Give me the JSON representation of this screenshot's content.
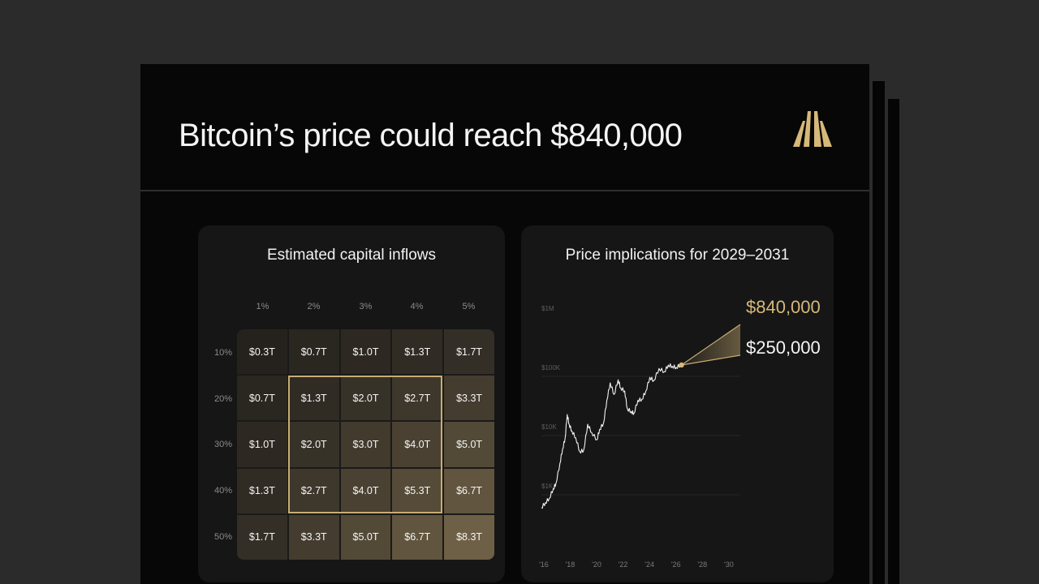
{
  "slide": {
    "title": "Bitcoin’s price could reach $840,000"
  },
  "colors": {
    "accent_gold": "#c9ad72",
    "background": "#070707",
    "card": "#161616"
  },
  "icons": {
    "logo": "bitwise-logo-icon"
  },
  "left_card": {
    "title": "Estimated capital inflows",
    "col_headers": [
      "1%",
      "2%",
      "3%",
      "4%",
      "5%"
    ],
    "row_headers": [
      "10%",
      "20%",
      "30%",
      "40%",
      "50%"
    ],
    "cells": [
      [
        "$0.3T",
        "$0.7T",
        "$1.0T",
        "$1.3T",
        "$1.7T"
      ],
      [
        "$0.7T",
        "$1.3T",
        "$2.0T",
        "$2.7T",
        "$3.3T"
      ],
      [
        "$1.0T",
        "$2.0T",
        "$3.0T",
        "$4.0T",
        "$5.0T"
      ],
      [
        "$1.3T",
        "$2.7T",
        "$4.0T",
        "$5.3T",
        "$6.7T"
      ],
      [
        "$1.7T",
        "$3.3T",
        "$5.0T",
        "$6.7T",
        "$8.3T"
      ]
    ],
    "cell_values_t": [
      [
        0.3,
        0.7,
        1.0,
        1.3,
        1.7
      ],
      [
        0.7,
        1.3,
        2.0,
        2.7,
        3.3
      ],
      [
        1.0,
        2.0,
        3.0,
        4.0,
        5.0
      ],
      [
        1.3,
        2.7,
        4.0,
        5.3,
        6.7
      ],
      [
        1.7,
        3.3,
        5.0,
        6.7,
        8.3
      ]
    ],
    "highlight_range": {
      "rows": [
        "20%",
        "40%"
      ],
      "cols": [
        "2%",
        "4%"
      ]
    }
  },
  "right_card": {
    "title": "Price implications for 2029–2031",
    "high_target": "$840,000",
    "low_target": "$250,000"
  },
  "chart_data": {
    "type": "line",
    "title": "Price implications for 2029–2031",
    "y_scale": "log",
    "y_ticks": [
      "$1M",
      "$100K",
      "$10K",
      "$1K"
    ],
    "x_ticks": [
      "'16",
      "'18",
      "'20",
      "'22",
      "'24",
      "'26",
      "'28",
      "'30"
    ],
    "xlim": [
      2016,
      2030
    ],
    "ylim": [
      100,
      1000000
    ],
    "series": [
      {
        "values": [
          [
            2016.0,
            430
          ],
          [
            2016.3,
            520
          ],
          [
            2016.6,
            620
          ],
          [
            2016.9,
            900
          ],
          [
            2017.1,
            1100
          ],
          [
            2017.4,
            2400
          ],
          [
            2017.6,
            4200
          ],
          [
            2017.8,
            6500
          ],
          [
            2017.95,
            16000
          ],
          [
            2018.1,
            11000
          ],
          [
            2018.3,
            8500
          ],
          [
            2018.6,
            6500
          ],
          [
            2018.9,
            3800
          ],
          [
            2019.2,
            4000
          ],
          [
            2019.5,
            11000
          ],
          [
            2019.8,
            8000
          ],
          [
            2020.2,
            6000
          ],
          [
            2020.4,
            9000
          ],
          [
            2020.7,
            11500
          ],
          [
            2020.95,
            28000
          ],
          [
            2021.2,
            55000
          ],
          [
            2021.5,
            35000
          ],
          [
            2021.8,
            62000
          ],
          [
            2022.0,
            45000
          ],
          [
            2022.3,
            40000
          ],
          [
            2022.5,
            20000
          ],
          [
            2022.8,
            18000
          ],
          [
            2023.0,
            16800
          ],
          [
            2023.3,
            28000
          ],
          [
            2023.6,
            29000
          ],
          [
            2023.9,
            40000
          ],
          [
            2024.2,
            68000
          ],
          [
            2024.5,
            60000
          ],
          [
            2024.9,
            96000
          ],
          [
            2025.3,
            85000
          ],
          [
            2025.6,
            110000
          ],
          [
            2025.9,
            105000
          ],
          [
            2026.2,
            100000
          ],
          [
            2026.5,
            110000
          ]
        ]
      }
    ],
    "projection": {
      "start": [
        2026.6,
        110000
      ],
      "end_year": 2031,
      "high": 840000,
      "low": 250000
    }
  }
}
